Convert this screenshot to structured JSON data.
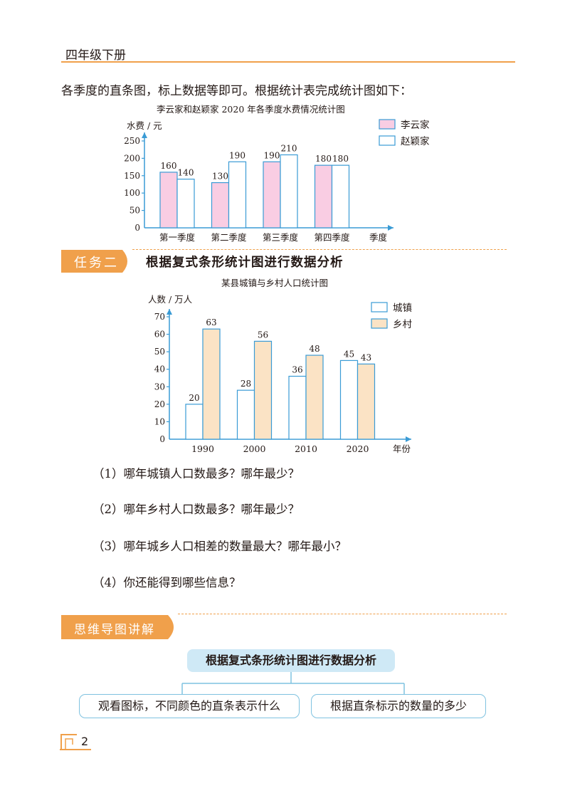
{
  "header": {
    "title": "四年级下册"
  },
  "intro_text": "各季度的直条图，标上数据等即可。根据统计表完成统计图如下：",
  "chart_data": [
    {
      "type": "bar",
      "title": "李云家和赵颖家 2020 年各季度水费情况统计图",
      "ylabel": "水费 / 元",
      "xlabel": "季度",
      "categories": [
        "第一季度",
        "第二季度",
        "第三季度",
        "第四季度"
      ],
      "ylim": [
        0,
        250
      ],
      "yticks": [
        0,
        50,
        100,
        150,
        200,
        250
      ],
      "legend_position": "top-right",
      "series": [
        {
          "name": "李云家",
          "values": [
            160,
            130,
            190,
            180
          ],
          "color": "#f9cde3"
        },
        {
          "name": "赵颖家",
          "values": [
            140,
            190,
            210,
            180
          ],
          "color": "#ffffff"
        }
      ]
    },
    {
      "type": "bar",
      "title": "某县城镇与乡村人口统计图",
      "ylabel": "人数 / 万人",
      "xlabel": "年份",
      "categories": [
        "1990",
        "2000",
        "2010",
        "2020"
      ],
      "ylim": [
        0,
        70
      ],
      "yticks": [
        0,
        10,
        20,
        30,
        40,
        50,
        60,
        70
      ],
      "legend_position": "top-right",
      "series": [
        {
          "name": "城镇",
          "values": [
            20,
            28,
            36,
            45
          ],
          "color": "#ffffff"
        },
        {
          "name": "乡村",
          "values": [
            63,
            56,
            48,
            43
          ],
          "color": "#fbe3c5"
        }
      ]
    }
  ],
  "task2": {
    "label": "任务二",
    "title": "根据复式条形统计图进行数据分析"
  },
  "questions": [
    "（1）哪年城镇人口数最多？哪年最少？",
    "（2）哪年乡村人口数最多？哪年最少？",
    "（3）哪年城乡人口相差的数量最大？哪年最小？",
    "（4）你还能得到哪些信息？"
  ],
  "mindmap": {
    "label": "思维导图讲解",
    "root": "根据复式条形统计图进行数据分析",
    "children": [
      "观看图标，不同颜色的直条表示什么",
      "根据直条标示的数量的多少"
    ]
  },
  "footer": {
    "page_number": "2"
  },
  "colors": {
    "accent": "#f0a04b",
    "axis": "#3a9bd5",
    "bar_stroke": "#3a9bd5"
  }
}
